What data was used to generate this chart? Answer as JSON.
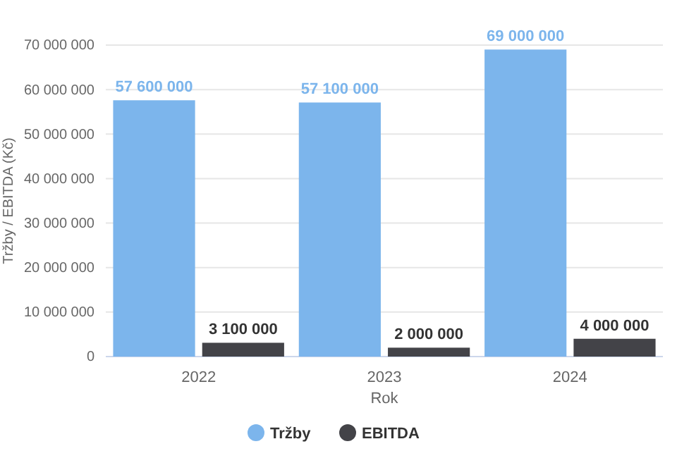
{
  "chart_data": {
    "type": "bar",
    "xlabel": "Rok",
    "ylabel": "Tržby / EBITDA (Kč)",
    "categories": [
      "2022",
      "2023",
      "2024"
    ],
    "series": [
      {
        "name": "Tržby",
        "color": "#7cb5ec",
        "values": [
          57600000,
          57100000,
          69000000
        ]
      },
      {
        "name": "EBITDA",
        "color": "#434348",
        "values": [
          3100000,
          2000000,
          4000000
        ]
      }
    ],
    "ylim": [
      0,
      70000000
    ],
    "yticks": [
      {
        "value": 0,
        "label": "0"
      },
      {
        "value": 10000000,
        "label": "10 000 000"
      },
      {
        "value": 20000000,
        "label": "20 000 000"
      },
      {
        "value": 30000000,
        "label": "30 000 000"
      },
      {
        "value": 40000000,
        "label": "40 000 000"
      },
      {
        "value": 50000000,
        "label": "50 000 000"
      },
      {
        "value": 60000000,
        "label": "60 000 000"
      },
      {
        "value": 70000000,
        "label": "70 000 000"
      }
    ],
    "grid": "y",
    "legend": "bottom",
    "data_labels": true
  }
}
